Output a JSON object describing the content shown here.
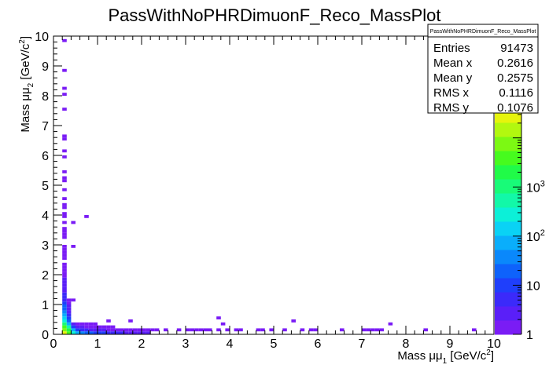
{
  "chart_data": {
    "type": "heatmap",
    "title": "PassWithNoPHRDimuonF_Reco_MassPlot",
    "x_axis": {
      "label_main": "Mass μμ",
      "label_sub": "1",
      "label_unit": "[GeV/c",
      "label_sup": "2",
      "label_end": "]",
      "range": [
        0,
        10
      ],
      "major_ticks": [
        0,
        1,
        2,
        3,
        4,
        5,
        6,
        7,
        8,
        9,
        10
      ]
    },
    "y_axis": {
      "label_main": "Mass μμ",
      "label_sub": "2",
      "label_unit": "[GeV/c",
      "label_sup": "2",
      "label_end": "]",
      "range": [
        0,
        10
      ],
      "major_ticks": [
        0,
        1,
        2,
        3,
        4,
        5,
        6,
        7,
        8,
        9,
        10
      ]
    },
    "z_axis": {
      "scale": "log",
      "range": [
        1,
        40000
      ],
      "tick_values": [
        10,
        100,
        1000
      ],
      "tick_labels": [
        {
          "base": "10",
          "exp": ""
        },
        {
          "base": "10",
          "exp": "2"
        },
        {
          "base": "10",
          "exp": "3"
        }
      ],
      "min_label": "1",
      "top_partial": "4"
    },
    "bin_width": 0.1,
    "stats_box": {
      "name": "PassWithNoPHRDimuonF_Reco_MassPlot",
      "rows": [
        {
          "label": "Entries",
          "value": "91473"
        },
        {
          "label": "Mean x",
          "value": "0.2616"
        },
        {
          "label": "Mean y",
          "value": "0.2575"
        },
        {
          "label": "RMS x",
          "value": "0.1116"
        },
        {
          "label": "RMS y",
          "value": "0.1076"
        }
      ]
    },
    "palette": [
      "#7a1cf5",
      "#5a1ff8",
      "#3b2afa",
      "#1f3ffb",
      "#0e62fb",
      "#0a88fb",
      "#0aaefb",
      "#0ad2f5",
      "#0cf0d8",
      "#12f8a8",
      "#18fb78",
      "#20fb48",
      "#46fb1e",
      "#7cf913",
      "#b2f80f",
      "#e6f40c"
    ],
    "bins": [
      {
        "x": 0.2,
        "y": 0.0,
        "z": 30000
      },
      {
        "x": 0.2,
        "y": 0.1,
        "z": 9000
      },
      {
        "x": 0.2,
        "y": 0.2,
        "z": 3000
      },
      {
        "x": 0.2,
        "y": 0.3,
        "z": 800
      },
      {
        "x": 0.2,
        "y": 0.4,
        "z": 300
      },
      {
        "x": 0.2,
        "y": 0.5,
        "z": 120
      },
      {
        "x": 0.2,
        "y": 0.6,
        "z": 60
      },
      {
        "x": 0.2,
        "y": 0.7,
        "z": 40
      },
      {
        "x": 0.2,
        "y": 0.8,
        "z": 25
      },
      {
        "x": 0.2,
        "y": 0.9,
        "z": 15
      },
      {
        "x": 0.2,
        "y": 1.0,
        "z": 10
      },
      {
        "x": 0.2,
        "y": 1.1,
        "z": 6
      },
      {
        "x": 0.2,
        "y": 1.2,
        "z": 5
      },
      {
        "x": 0.2,
        "y": 1.3,
        "z": 4
      },
      {
        "x": 0.2,
        "y": 1.4,
        "z": 3
      },
      {
        "x": 0.2,
        "y": 1.5,
        "z": 3
      },
      {
        "x": 0.2,
        "y": 1.6,
        "z": 2
      },
      {
        "x": 0.2,
        "y": 1.7,
        "z": 2
      },
      {
        "x": 0.2,
        "y": 1.8,
        "z": 2
      },
      {
        "x": 0.2,
        "y": 1.9,
        "z": 1
      },
      {
        "x": 0.2,
        "y": 2.0,
        "z": 1
      },
      {
        "x": 0.2,
        "y": 2.1,
        "z": 1
      },
      {
        "x": 0.2,
        "y": 2.2,
        "z": 1
      },
      {
        "x": 0.2,
        "y": 2.3,
        "z": 1
      },
      {
        "x": 0.2,
        "y": 2.5,
        "z": 1
      },
      {
        "x": 0.2,
        "y": 2.6,
        "z": 1
      },
      {
        "x": 0.2,
        "y": 2.7,
        "z": 1
      },
      {
        "x": 0.2,
        "y": 2.8,
        "z": 1
      },
      {
        "x": 0.2,
        "y": 2.9,
        "z": 1
      },
      {
        "x": 0.2,
        "y": 3.2,
        "z": 1
      },
      {
        "x": 0.2,
        "y": 3.3,
        "z": 1
      },
      {
        "x": 0.2,
        "y": 3.4,
        "z": 1
      },
      {
        "x": 0.2,
        "y": 3.5,
        "z": 1
      },
      {
        "x": 0.2,
        "y": 3.7,
        "z": 1
      },
      {
        "x": 0.2,
        "y": 3.9,
        "z": 1
      },
      {
        "x": 0.2,
        "y": 4.0,
        "z": 1
      },
      {
        "x": 0.2,
        "y": 4.2,
        "z": 1
      },
      {
        "x": 0.2,
        "y": 4.3,
        "z": 1
      },
      {
        "x": 0.2,
        "y": 4.5,
        "z": 1
      },
      {
        "x": 0.2,
        "y": 4.8,
        "z": 1
      },
      {
        "x": 0.2,
        "y": 5.1,
        "z": 1
      },
      {
        "x": 0.2,
        "y": 5.2,
        "z": 1
      },
      {
        "x": 0.2,
        "y": 5.4,
        "z": 1
      },
      {
        "x": 0.2,
        "y": 5.9,
        "z": 1
      },
      {
        "x": 0.2,
        "y": 6.1,
        "z": 1
      },
      {
        "x": 0.2,
        "y": 6.5,
        "z": 1
      },
      {
        "x": 0.2,
        "y": 6.6,
        "z": 1
      },
      {
        "x": 0.2,
        "y": 7.5,
        "z": 1
      },
      {
        "x": 0.2,
        "y": 8.0,
        "z": 1
      },
      {
        "x": 0.2,
        "y": 8.2,
        "z": 1
      },
      {
        "x": 0.2,
        "y": 8.8,
        "z": 1
      },
      {
        "x": 0.2,
        "y": 9.8,
        "z": 1
      },
      {
        "x": 0.3,
        "y": 0.0,
        "z": 4000
      },
      {
        "x": 0.3,
        "y": 0.1,
        "z": 1500
      },
      {
        "x": 0.3,
        "y": 0.2,
        "z": 400
      },
      {
        "x": 0.3,
        "y": 0.3,
        "z": 80
      },
      {
        "x": 0.3,
        "y": 0.4,
        "z": 20
      },
      {
        "x": 0.3,
        "y": 0.5,
        "z": 8
      },
      {
        "x": 0.3,
        "y": 0.6,
        "z": 4
      },
      {
        "x": 0.3,
        "y": 0.7,
        "z": 3
      },
      {
        "x": 0.3,
        "y": 0.8,
        "z": 2
      },
      {
        "x": 0.3,
        "y": 0.9,
        "z": 2
      },
      {
        "x": 0.3,
        "y": 1.0,
        "z": 1
      },
      {
        "x": 0.3,
        "y": 1.1,
        "z": 1
      },
      {
        "x": 0.4,
        "y": 0.0,
        "z": 300
      },
      {
        "x": 0.4,
        "y": 0.1,
        "z": 60
      },
      {
        "x": 0.4,
        "y": 0.2,
        "z": 10
      },
      {
        "x": 0.4,
        "y": 0.3,
        "z": 2
      },
      {
        "x": 0.4,
        "y": 1.1,
        "z": 1
      },
      {
        "x": 0.4,
        "y": 2.9,
        "z": 1
      },
      {
        "x": 0.4,
        "y": 3.7,
        "z": 1
      },
      {
        "x": 0.5,
        "y": 0.0,
        "z": 60
      },
      {
        "x": 0.5,
        "y": 0.1,
        "z": 12
      },
      {
        "x": 0.5,
        "y": 0.2,
        "z": 3
      },
      {
        "x": 0.5,
        "y": 0.3,
        "z": 1
      },
      {
        "x": 0.6,
        "y": 0.0,
        "z": 30
      },
      {
        "x": 0.6,
        "y": 0.1,
        "z": 6
      },
      {
        "x": 0.6,
        "y": 0.2,
        "z": 2
      },
      {
        "x": 0.6,
        "y": 0.3,
        "z": 1
      },
      {
        "x": 0.7,
        "y": 0.0,
        "z": 20
      },
      {
        "x": 0.7,
        "y": 0.1,
        "z": 4
      },
      {
        "x": 0.7,
        "y": 0.2,
        "z": 1
      },
      {
        "x": 0.7,
        "y": 0.3,
        "z": 1
      },
      {
        "x": 0.7,
        "y": 3.9,
        "z": 1
      },
      {
        "x": 0.8,
        "y": 0.0,
        "z": 15
      },
      {
        "x": 0.8,
        "y": 0.1,
        "z": 3
      },
      {
        "x": 0.8,
        "y": 0.2,
        "z": 1
      },
      {
        "x": 0.8,
        "y": 0.3,
        "z": 1
      },
      {
        "x": 0.9,
        "y": 0.0,
        "z": 12
      },
      {
        "x": 0.9,
        "y": 0.1,
        "z": 2
      },
      {
        "x": 0.9,
        "y": 0.2,
        "z": 1
      },
      {
        "x": 0.9,
        "y": 0.3,
        "z": 1
      },
      {
        "x": 1.0,
        "y": 0.0,
        "z": 10
      },
      {
        "x": 1.0,
        "y": 0.1,
        "z": 2
      },
      {
        "x": 1.0,
        "y": 0.2,
        "z": 1
      },
      {
        "x": 1.1,
        "y": 0.0,
        "z": 8
      },
      {
        "x": 1.1,
        "y": 0.1,
        "z": 2
      },
      {
        "x": 1.1,
        "y": 0.2,
        "z": 1
      },
      {
        "x": 1.2,
        "y": 0.0,
        "z": 6
      },
      {
        "x": 1.2,
        "y": 0.1,
        "z": 1
      },
      {
        "x": 1.2,
        "y": 0.2,
        "z": 1
      },
      {
        "x": 1.2,
        "y": 0.4,
        "z": 1
      },
      {
        "x": 1.3,
        "y": 0.0,
        "z": 5
      },
      {
        "x": 1.3,
        "y": 0.1,
        "z": 1
      },
      {
        "x": 1.3,
        "y": 0.2,
        "z": 1
      },
      {
        "x": 1.4,
        "y": 0.0,
        "z": 4
      },
      {
        "x": 1.4,
        "y": 0.1,
        "z": 1
      },
      {
        "x": 1.5,
        "y": 0.0,
        "z": 4
      },
      {
        "x": 1.5,
        "y": 0.1,
        "z": 1
      },
      {
        "x": 1.6,
        "y": 0.0,
        "z": 3
      },
      {
        "x": 1.6,
        "y": 0.1,
        "z": 1
      },
      {
        "x": 1.7,
        "y": 0.0,
        "z": 3
      },
      {
        "x": 1.7,
        "y": 0.1,
        "z": 1
      },
      {
        "x": 1.7,
        "y": 0.4,
        "z": 1
      },
      {
        "x": 1.8,
        "y": 0.0,
        "z": 3
      },
      {
        "x": 1.8,
        "y": 0.1,
        "z": 1
      },
      {
        "x": 1.9,
        "y": 0.0,
        "z": 2
      },
      {
        "x": 1.9,
        "y": 0.1,
        "z": 1
      },
      {
        "x": 2.0,
        "y": 0.0,
        "z": 2
      },
      {
        "x": 2.0,
        "y": 0.1,
        "z": 1
      },
      {
        "x": 2.1,
        "y": 0.0,
        "z": 2
      },
      {
        "x": 2.1,
        "y": 0.1,
        "z": 1
      },
      {
        "x": 2.2,
        "y": 0.1,
        "z": 1
      },
      {
        "x": 2.3,
        "y": 0.1,
        "z": 1
      },
      {
        "x": 2.5,
        "y": 0.1,
        "z": 1
      },
      {
        "x": 2.8,
        "y": 0.1,
        "z": 1
      },
      {
        "x": 3.0,
        "y": 0.1,
        "z": 1
      },
      {
        "x": 3.1,
        "y": 0.1,
        "z": 1
      },
      {
        "x": 3.2,
        "y": 0.1,
        "z": 1
      },
      {
        "x": 3.3,
        "y": 0.1,
        "z": 1
      },
      {
        "x": 3.4,
        "y": 0.1,
        "z": 1
      },
      {
        "x": 3.5,
        "y": 0.1,
        "z": 1
      },
      {
        "x": 3.7,
        "y": 0.1,
        "z": 1
      },
      {
        "x": 3.7,
        "y": 0.5,
        "z": 1
      },
      {
        "x": 3.8,
        "y": 0.3,
        "z": 1
      },
      {
        "x": 3.9,
        "y": 0.1,
        "z": 1
      },
      {
        "x": 4.1,
        "y": 0.1,
        "z": 1
      },
      {
        "x": 4.2,
        "y": 0.1,
        "z": 1
      },
      {
        "x": 4.6,
        "y": 0.1,
        "z": 1
      },
      {
        "x": 4.7,
        "y": 0.1,
        "z": 1
      },
      {
        "x": 4.9,
        "y": 0.1,
        "z": 1
      },
      {
        "x": 5.2,
        "y": 0.1,
        "z": 1
      },
      {
        "x": 5.4,
        "y": 0.4,
        "z": 1
      },
      {
        "x": 5.6,
        "y": 0.1,
        "z": 1
      },
      {
        "x": 5.8,
        "y": 0.1,
        "z": 1
      },
      {
        "x": 5.9,
        "y": 0.1,
        "z": 1
      },
      {
        "x": 6.5,
        "y": 0.1,
        "z": 1
      },
      {
        "x": 7.0,
        "y": 0.1,
        "z": 1
      },
      {
        "x": 7.1,
        "y": 0.1,
        "z": 1
      },
      {
        "x": 7.2,
        "y": 0.1,
        "z": 1
      },
      {
        "x": 7.3,
        "y": 0.1,
        "z": 1
      },
      {
        "x": 7.4,
        "y": 0.1,
        "z": 1
      },
      {
        "x": 7.6,
        "y": 0.3,
        "z": 1
      },
      {
        "x": 8.4,
        "y": 0.1,
        "z": 1
      },
      {
        "x": 9.5,
        "y": 0.1,
        "z": 1
      }
    ]
  }
}
